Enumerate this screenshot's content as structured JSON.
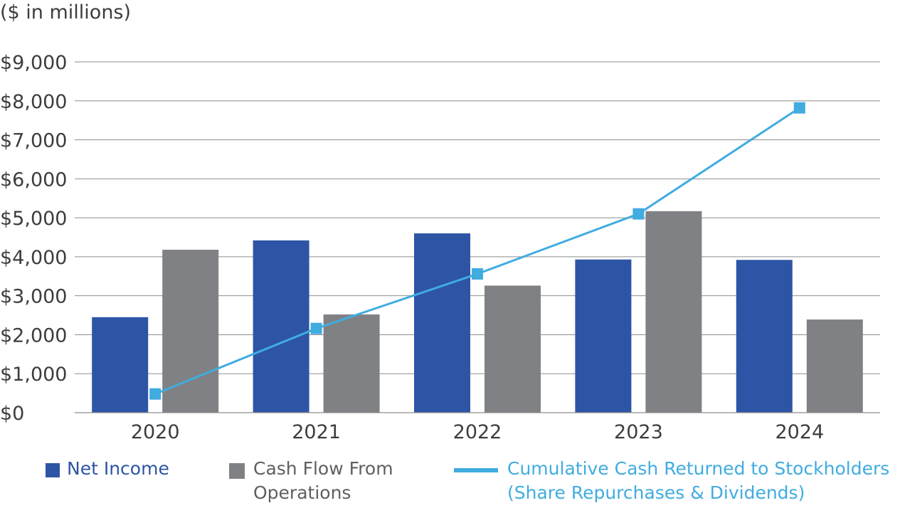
{
  "chart_data": {
    "type": "bar",
    "unit_label": "($ in millions)",
    "categories": [
      "2020",
      "2021",
      "2022",
      "2023",
      "2024"
    ],
    "yticks": [
      "$0",
      "$1,000",
      "$2,000",
      "$3,000",
      "$4,000",
      "$5,000",
      "$6,000",
      "$7,000",
      "$8,000",
      "$9,000"
    ],
    "ylim": [
      0,
      9000
    ],
    "grid": true,
    "series": [
      {
        "name": "Net Income",
        "kind": "bar",
        "color": "#2e55a5",
        "values": [
          2450,
          4420,
          4600,
          3930,
          3920
        ]
      },
      {
        "name": "Cash Flow From Operations",
        "kind": "bar",
        "color": "#808184",
        "values": [
          4180,
          2520,
          3260,
          5170,
          2390
        ]
      },
      {
        "name": "Cumulative Cash Returned to Stockholders (Share Repurchases & Dividends)",
        "kind": "line",
        "color": "#40ace0",
        "values": [
          480,
          2160,
          3560,
          5100,
          7820
        ]
      }
    ],
    "legend": {
      "position": "bottom",
      "net_income": "Net Income",
      "cfo_line1": "Cash Flow From",
      "cfo_line2": "Operations",
      "cum_line1": "Cumulative Cash Returned to Stockholders",
      "cum_line2": "(Share Repurchases & Dividends)"
    }
  }
}
